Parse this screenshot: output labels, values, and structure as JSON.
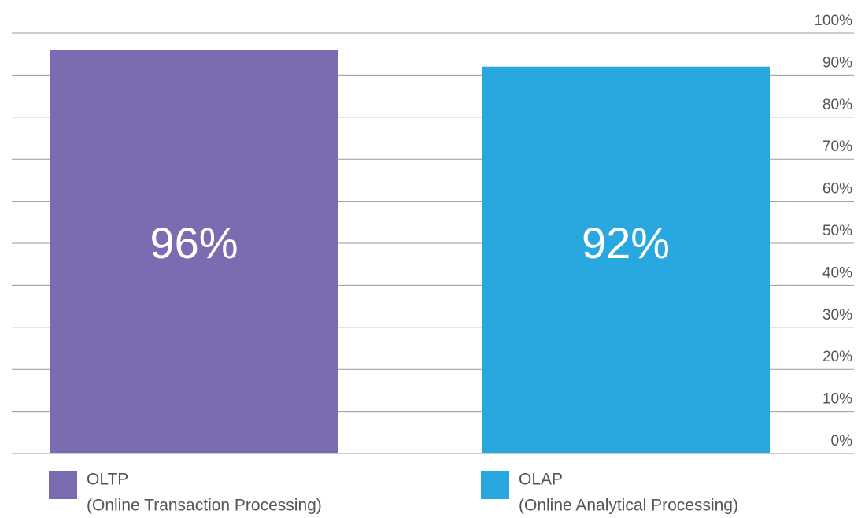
{
  "chart_data": {
    "type": "bar",
    "categories": [
      "OLTP",
      "OLAP"
    ],
    "category_descriptions": [
      "(Online Transaction Processing)",
      "(Online Analytical Processing)"
    ],
    "values": [
      96,
      92
    ],
    "value_labels": [
      "96%",
      "92%"
    ],
    "colors": [
      "#7b6bb0",
      "#29a8e0"
    ],
    "ylim": [
      0,
      100
    ],
    "yticks": [
      {
        "value": 0,
        "label": "0%"
      },
      {
        "value": 10,
        "label": "10%"
      },
      {
        "value": 20,
        "label": "20%"
      },
      {
        "value": 30,
        "label": "30%"
      },
      {
        "value": 40,
        "label": "40%"
      },
      {
        "value": 50,
        "label": "50%"
      },
      {
        "value": 60,
        "label": "60%"
      },
      {
        "value": 70,
        "label": "70%"
      },
      {
        "value": 80,
        "label": "80%"
      },
      {
        "value": 90,
        "label": "90%"
      },
      {
        "value": 100,
        "label": "100%"
      }
    ],
    "grid": true,
    "axis_side": "right"
  }
}
